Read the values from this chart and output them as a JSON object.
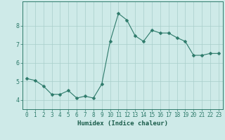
{
  "xlabel": "Humidex (Indice chaleur)",
  "x": [
    0,
    1,
    2,
    3,
    4,
    5,
    6,
    7,
    8,
    9,
    10,
    11,
    12,
    13,
    14,
    15,
    16,
    17,
    18,
    19,
    20,
    21,
    22,
    23
  ],
  "y": [
    5.15,
    5.05,
    4.75,
    4.3,
    4.3,
    4.5,
    4.1,
    4.2,
    4.1,
    4.85,
    7.15,
    8.65,
    8.3,
    7.45,
    7.15,
    7.75,
    7.6,
    7.6,
    7.35,
    7.15,
    6.4,
    6.4,
    6.5,
    6.5
  ],
  "line_color": "#2d7a6a",
  "marker_color": "#2d7a6a",
  "bg_color": "#ceeae8",
  "grid_color": "#a8ceca",
  "axis_color": "#2d7a6a",
  "tick_label_color": "#2d7a6a",
  "xlabel_color": "#1a5c4a",
  "ylim": [
    3.5,
    9.3
  ],
  "xlim": [
    -0.5,
    23.5
  ],
  "yticks": [
    4,
    5,
    6,
    7,
    8
  ],
  "xticks": [
    0,
    1,
    2,
    3,
    4,
    5,
    6,
    7,
    8,
    9,
    10,
    11,
    12,
    13,
    14,
    15,
    16,
    17,
    18,
    19,
    20,
    21,
    22,
    23
  ],
  "fontsize_ticks": 5.5,
  "fontsize_xlabel": 6.5,
  "marker_size": 2.5,
  "line_width": 0.8
}
